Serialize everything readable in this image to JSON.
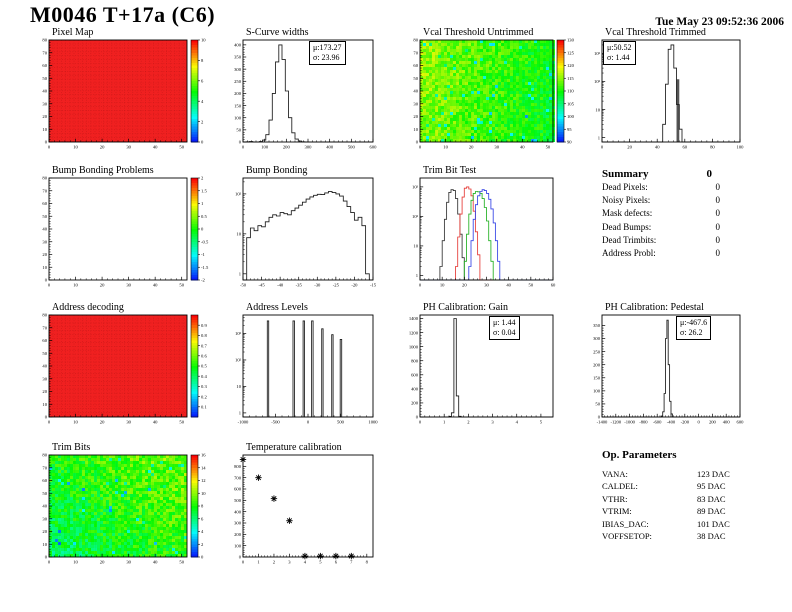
{
  "page": {
    "title": "M0046 T+17a (C6)",
    "timestamp": "Tue May 23 09:52:36 2006"
  },
  "chart_data": {
    "pixel_map": {
      "type": "heatmap",
      "variant": "solid",
      "title": "Pixel Map",
      "base_color": "#f02020",
      "xlim": [
        0,
        52
      ],
      "ylim": [
        0,
        80
      ],
      "xticks": [
        0,
        10,
        20,
        30,
        40,
        50
      ],
      "yticks": [
        0,
        10,
        20,
        30,
        40,
        50,
        60,
        70,
        80
      ],
      "colorbar": {
        "labels": [
          "10",
          "8",
          "6",
          "4",
          "2",
          "0"
        ]
      }
    },
    "s_curve": {
      "type": "hist",
      "title": "S-Curve widths",
      "xlim": [
        0,
        600
      ],
      "ymax": 420,
      "xticks": [
        0,
        100,
        200,
        300,
        400,
        500,
        600
      ],
      "yticks": [
        0,
        50,
        100,
        150,
        200,
        250,
        300,
        350,
        400
      ],
      "x0": 15,
      "binw": 15,
      "values": [
        1,
        2,
        0,
        0,
        2,
        8,
        30,
        90,
        200,
        330,
        400,
        340,
        210,
        100,
        38,
        12,
        4,
        1
      ],
      "stats": {
        "mu": "μ:173.27",
        "sigma": "σ: 23.96",
        "corner": "tr"
      }
    },
    "vcal_untrimmed": {
      "type": "heatmap",
      "variant": "noise",
      "title": "Vcal Threshold Untrimmed",
      "noise": {
        "t0": 0.56,
        "gx": -0.16,
        "gy": 0.02,
        "amp": 0.17,
        "speck": 0.035,
        "seed": 7
      },
      "xlim": [
        0,
        52
      ],
      "ylim": [
        0,
        80
      ],
      "xticks": [
        0,
        10,
        20,
        30,
        40,
        50
      ],
      "yticks": [
        0,
        10,
        20,
        30,
        40,
        50,
        60,
        70,
        80
      ],
      "colorbar": {
        "labels": [
          "130",
          "125",
          "120",
          "115",
          "110",
          "105",
          "100",
          "95",
          "90"
        ]
      }
    },
    "vcal_trimmed": {
      "type": "hist",
      "title": "Vcal Threshold Trimmed",
      "xlim": [
        0,
        100
      ],
      "ylog": true,
      "ymax": 3000,
      "xticks": [
        0,
        20,
        40,
        60,
        80,
        100
      ],
      "log_yticks": [
        {
          "v": 1,
          "label": "1"
        },
        {
          "v": 10,
          "label": "10"
        },
        {
          "v": 100,
          "label": "10²"
        },
        {
          "v": 1000,
          "label": "10³"
        }
      ],
      "x0": 44,
      "binw": 2,
      "values": [
        3,
        80,
        1400,
        2000,
        300,
        15,
        2
      ],
      "shaded_bar": {
        "x0": 54,
        "x1": 56,
        "h": 120
      },
      "stats": {
        "mu": "μ:50.52",
        "sigma": "σ: 1.44",
        "corner": "tl"
      }
    },
    "bump_problems": {
      "type": "empty",
      "title": "Bump Bonding Problems",
      "xlim": [
        0,
        52
      ],
      "ylim": [
        0,
        80
      ],
      "xticks": [
        0,
        10,
        20,
        30,
        40,
        50
      ],
      "yticks": [
        0,
        10,
        20,
        30,
        40,
        50,
        60,
        70,
        80
      ],
      "colorbar": {
        "labels": [
          "2",
          "1.5",
          "1",
          "0.5",
          "0",
          "-0.5",
          "-1",
          "-1.5",
          "-2"
        ]
      }
    },
    "bump_bonding": {
      "type": "hist",
      "title": "Bump Bonding",
      "xlim": [
        -50,
        -15
      ],
      "ylog": true,
      "ymax": 250,
      "xticks": [
        -50,
        -45,
        -40,
        -35,
        -30,
        -25,
        -20,
        -15
      ],
      "log_yticks": [
        {
          "v": 1,
          "label": "1"
        },
        {
          "v": 10,
          "label": "10"
        },
        {
          "v": 100,
          "label": "10²"
        }
      ],
      "x0": -49,
      "binw": 1,
      "values": [
        8,
        14,
        12,
        16,
        15,
        20,
        26,
        30,
        28,
        34,
        32,
        30,
        38,
        44,
        52,
        62,
        74,
        84,
        92,
        98,
        96,
        106,
        114,
        108,
        100,
        88,
        66,
        48,
        34,
        22,
        26,
        16,
        1
      ]
    },
    "trim_bit_test": {
      "type": "multihist",
      "title": "Trim Bit Test",
      "xlim": [
        0,
        60
      ],
      "ylog": true,
      "ymax": 2000,
      "xticks": [
        0,
        10,
        20,
        30,
        40,
        50,
        60
      ],
      "log_yticks": [
        {
          "v": 1,
          "label": "1"
        },
        {
          "v": 10,
          "label": "10"
        },
        {
          "v": 100,
          "label": "10²"
        },
        {
          "v": 1000,
          "label": "10³"
        }
      ],
      "series": [
        {
          "name": "trim-bits-0",
          "color": "#333333",
          "x0": 9,
          "binw": 1,
          "values": [
            2,
            15,
            80,
            300,
            650,
            800,
            750,
            400,
            120,
            25,
            4
          ]
        },
        {
          "name": "trim-bits-1",
          "color": "#e53935",
          "x0": 16,
          "binw": 1,
          "values": [
            2,
            20,
            120,
            450,
            900,
            1000,
            850,
            500,
            150,
            30,
            5
          ]
        },
        {
          "name": "trim-bits-2",
          "color": "#21b021",
          "x0": 20,
          "binw": 1,
          "values": [
            3,
            25,
            120,
            350,
            600,
            700,
            680,
            600,
            400,
            200,
            70,
            15,
            3
          ]
        },
        {
          "name": "trim-bits-3",
          "color": "#3342e5",
          "x0": 22,
          "binw": 1,
          "values": [
            2,
            15,
            80,
            250,
            500,
            700,
            800,
            750,
            600,
            380,
            180,
            60,
            15,
            3
          ]
        }
      ]
    },
    "address_decoding": {
      "type": "heatmap",
      "variant": "solid",
      "title": "Address decoding",
      "base_color": "#f02020",
      "xlim": [
        0,
        52
      ],
      "ylim": [
        0,
        80
      ],
      "xticks": [
        0,
        10,
        20,
        30,
        40,
        50
      ],
      "yticks": [
        0,
        10,
        20,
        30,
        40,
        50,
        60,
        70,
        80
      ],
      "colorbar": {
        "labels": [
          "0.9",
          "0.8",
          "0.7",
          "0.6",
          "0.5",
          "0.4",
          "0.3",
          "0.2",
          "0.1"
        ],
        "interior": true
      }
    },
    "address_levels": {
      "type": "hist",
      "title": "Address Levels",
      "xlim": [
        -1000,
        1000
      ],
      "ylog": true,
      "ymax": 5000,
      "xticks": [
        -1000,
        -500,
        0,
        500,
        1000
      ],
      "log_yticks": [
        {
          "v": 1,
          "label": "1"
        },
        {
          "v": 10,
          "label": "10"
        },
        {
          "v": 100,
          "label": "10²"
        },
        {
          "v": 1000,
          "label": "10³"
        }
      ],
      "spikes": [
        [
          -620,
          3000
        ],
        [
          -240,
          3000
        ],
        [
          -80,
          3000
        ],
        [
          60,
          3000
        ],
        [
          200,
          1500
        ],
        [
          360,
          900
        ],
        [
          500,
          600
        ]
      ],
      "spike_width": 22
    },
    "ph_gain": {
      "type": "hist",
      "title": "PH Calibration: Gain",
      "xlim": [
        0,
        5.5
      ],
      "ymax": 1450,
      "xticks": [
        0,
        1,
        2,
        3,
        4,
        5
      ],
      "yticks": [
        0,
        200,
        400,
        600,
        800,
        1000,
        1200,
        1400
      ],
      "x0": 1.2,
      "binw": 0.1,
      "values": [
        8,
        60,
        1400,
        300,
        10
      ],
      "stats": {
        "mu": "μ: 1.44",
        "sigma": "σ: 0.04",
        "corner": "tr"
      }
    },
    "ph_pedestal": {
      "type": "hist",
      "title": "PH Calibration: Pedestal",
      "xlim": [
        -1400,
        600
      ],
      "ymax": 390,
      "xticks": [
        -1400,
        -1200,
        -1000,
        -800,
        -600,
        -400,
        -200,
        0,
        200,
        400,
        600
      ],
      "yticks": [
        0,
        50,
        100,
        150,
        200,
        250,
        300,
        350
      ],
      "x0": -540,
      "binw": 20,
      "values": [
        4,
        20,
        90,
        300,
        370,
        200,
        60,
        12
      ],
      "stats": {
        "mu": "μ:-467.6",
        "sigma": "σ: 26.2",
        "corner": "tr"
      }
    },
    "trim_bits": {
      "type": "heatmap",
      "variant": "noise",
      "title": "Trim Bits",
      "noise": {
        "t0": 0.52,
        "gx": 0.12,
        "gy": 0.1,
        "amp": 0.2,
        "speck": 0.025,
        "seed": 11
      },
      "xlim": [
        0,
        52
      ],
      "ylim": [
        0,
        80
      ],
      "xticks": [
        0,
        10,
        20,
        30,
        40,
        50
      ],
      "yticks": [
        0,
        10,
        20,
        30,
        40,
        50,
        60,
        70,
        80
      ],
      "colorbar": {
        "labels": [
          "16",
          "14",
          "12",
          "10",
          "8",
          "6",
          "4",
          "2",
          "0"
        ]
      }
    },
    "temp_cal": {
      "type": "scatter",
      "title": "Temperature calibration",
      "xlim": [
        0,
        8.4
      ],
      "ymax": 900,
      "xticks": [
        0,
        1,
        2,
        3,
        4,
        5,
        6,
        7,
        8
      ],
      "yticks": [
        0,
        100,
        200,
        300,
        400,
        500,
        600,
        700,
        800
      ],
      "points": [
        [
          0,
          860
        ],
        [
          1,
          700
        ],
        [
          2,
          515
        ],
        [
          3,
          320
        ],
        [
          4,
          8
        ],
        [
          5,
          8
        ],
        [
          6,
          8
        ],
        [
          7,
          8
        ]
      ],
      "marker": "star"
    }
  },
  "summary": {
    "header": "Summary",
    "header_value": "0",
    "rows": [
      {
        "label": "Dead Pixels:",
        "value": "0"
      },
      {
        "label": "Noisy Pixels:",
        "value": "0"
      },
      {
        "label": "Mask defects:",
        "value": "0"
      },
      {
        "label": "Dead Bumps:",
        "value": "0"
      },
      {
        "label": "Dead Trimbits:",
        "value": "0"
      },
      {
        "label": "Address Probl:",
        "value": "0"
      }
    ]
  },
  "op_parameters": {
    "header": "Op. Parameters",
    "rows": [
      {
        "label": "VANA:",
        "value": "123 DAC"
      },
      {
        "label": "CALDEL:",
        "value": "95 DAC"
      },
      {
        "label": "VTHR:",
        "value": "83 DAC"
      },
      {
        "label": "VTRIM:",
        "value": "89 DAC"
      },
      {
        "label": "IBIAS_DAC:",
        "value": "101 DAC"
      },
      {
        "label": "VOFFSETOP:",
        "value": "38 DAC"
      }
    ]
  }
}
